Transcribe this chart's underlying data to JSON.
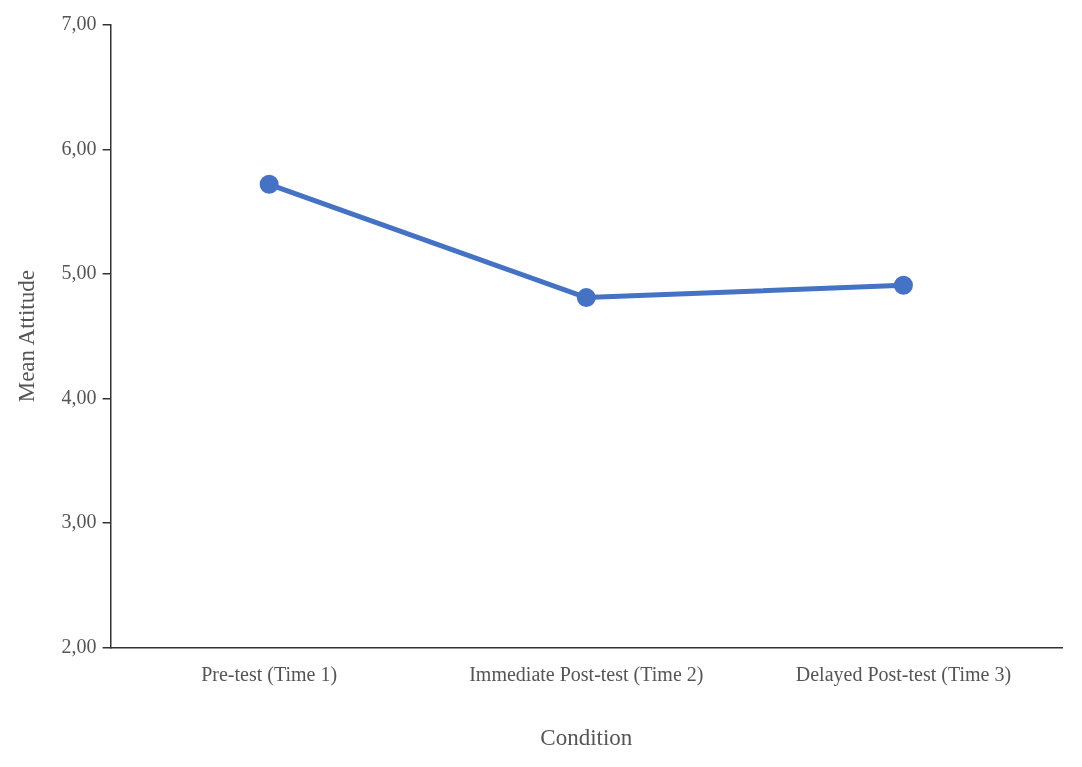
{
  "chart_data": {
    "type": "line",
    "xlabel": "Condition",
    "ylabel": "Mean Attitude",
    "categories": [
      "Pre-test (Time 1)",
      "Immediate Post-test (Time 2)",
      "Delayed Post-test (Time 3)"
    ],
    "series": [
      {
        "color": "#4472c4",
        "values": [
          5.72,
          4.81,
          4.91
        ]
      }
    ],
    "ylim": [
      2,
      7
    ],
    "yticks": [
      {
        "value": 2,
        "label": "2,00"
      },
      {
        "value": 3,
        "label": "3,00"
      },
      {
        "value": 4,
        "label": "4,00"
      },
      {
        "value": 5,
        "label": "5,00"
      },
      {
        "value": 6,
        "label": "6,00"
      },
      {
        "value": 7,
        "label": "7,00"
      }
    ],
    "grid": false,
    "legend": false,
    "marker": "circle",
    "line_style": "solid"
  }
}
